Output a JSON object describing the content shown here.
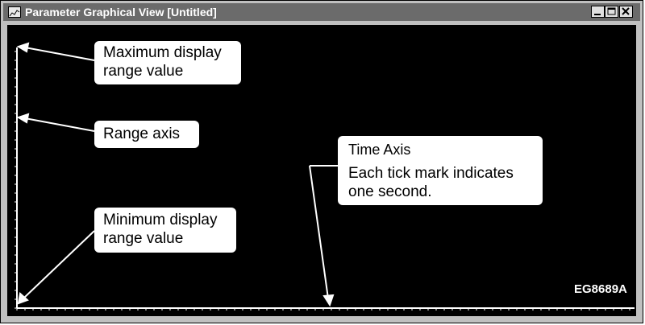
{
  "window": {
    "title": "Parameter Graphical View [Untitled]",
    "buttons": {
      "minimize": "minimize-icon",
      "maximize": "maximize-icon",
      "close": "close-icon"
    }
  },
  "callouts": {
    "max_range": {
      "line1": "Maximum display",
      "line2": "range value"
    },
    "range_axis": {
      "label": "Range axis"
    },
    "min_range": {
      "line1": "Minimum display",
      "line2": "range value"
    },
    "time_axis": {
      "title": "Time Axis",
      "line1": "Each tick mark indicates",
      "line2": "one second."
    }
  },
  "reference_code": "EG8689A",
  "colors": {
    "graph_background": "#000000",
    "axis": "#ffffff",
    "titlebar": "#6b6b6b"
  }
}
